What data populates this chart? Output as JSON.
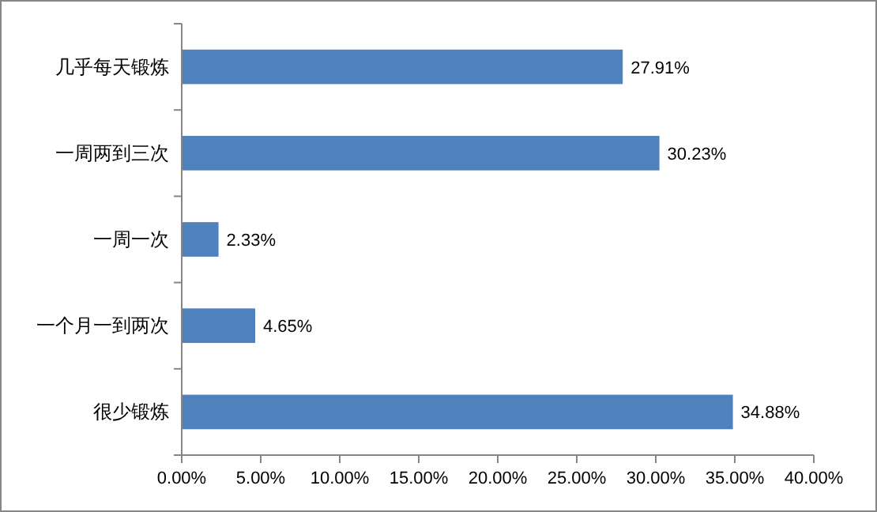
{
  "chart_data": {
    "type": "bar",
    "orientation": "horizontal",
    "categories": [
      "几乎每天锻炼",
      "一周两到三次",
      "一周一次",
      "一个月一到两次",
      "很少锻炼"
    ],
    "values": [
      27.91,
      30.23,
      2.33,
      4.65,
      34.88
    ],
    "value_labels": [
      "27.91%",
      "30.23%",
      "2.33%",
      "4.65%",
      "34.88%"
    ],
    "color": "#4f81bd",
    "xlim": [
      0,
      40
    ],
    "xticks": [
      {
        "value": 0,
        "label": "0.00%"
      },
      {
        "value": 5,
        "label": "5.00%"
      },
      {
        "value": 10,
        "label": "10.00%"
      },
      {
        "value": 15,
        "label": "15.00%"
      },
      {
        "value": 20,
        "label": "20.00%"
      },
      {
        "value": 25,
        "label": "25.00%"
      },
      {
        "value": 30,
        "label": "30.00%"
      },
      {
        "value": 35,
        "label": "35.00%"
      },
      {
        "value": 40,
        "label": "40.00%"
      }
    ]
  }
}
